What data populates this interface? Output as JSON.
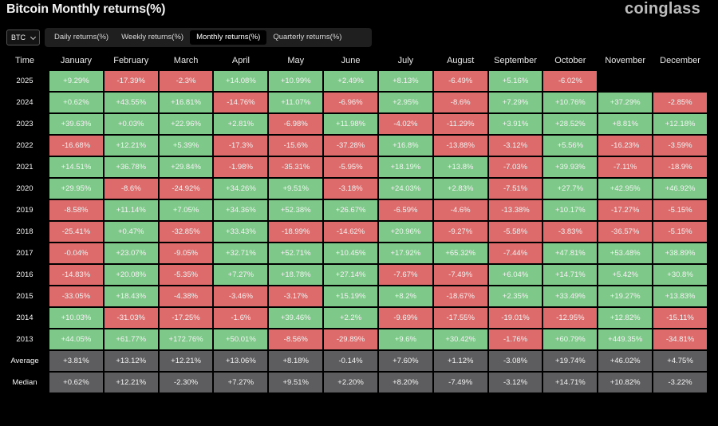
{
  "header": {
    "title": "Bitcoin Monthly returns(%)",
    "brand": "coinglass"
  },
  "asset_select": {
    "value": "BTC"
  },
  "tabs": [
    {
      "label": "Daily returns(%)",
      "active": false
    },
    {
      "label": "Weekly returns(%)",
      "active": false
    },
    {
      "label": "Monthly returns(%)",
      "active": true
    },
    {
      "label": "Quarterly returns(%)",
      "active": false
    }
  ],
  "colors": {
    "positive": "#7ec889",
    "negative": "#dd6b6b",
    "stat": "#5d5d5f"
  },
  "table": {
    "columns": [
      "Time",
      "January",
      "February",
      "March",
      "April",
      "May",
      "June",
      "July",
      "August",
      "September",
      "October",
      "November",
      "December"
    ],
    "rows": [
      {
        "label": "2025",
        "values": [
          "+9.29%",
          "-17.39%",
          "-2.3%",
          "+14.08%",
          "+10.99%",
          "+2.49%",
          "+8.13%",
          "-6.49%",
          "+5.16%",
          "-6.02%",
          "",
          ""
        ]
      },
      {
        "label": "2024",
        "values": [
          "+0.62%",
          "+43.55%",
          "+16.81%",
          "-14.76%",
          "+11.07%",
          "-6.96%",
          "+2.95%",
          "-8.6%",
          "+7.29%",
          "+10.76%",
          "+37.29%",
          "-2.85%"
        ]
      },
      {
        "label": "2023",
        "values": [
          "+39.63%",
          "+0.03%",
          "+22.96%",
          "+2.81%",
          "-6.98%",
          "+11.98%",
          "-4.02%",
          "-11.29%",
          "+3.91%",
          "+28.52%",
          "+8.81%",
          "+12.18%"
        ]
      },
      {
        "label": "2022",
        "values": [
          "-16.68%",
          "+12.21%",
          "+5.39%",
          "-17.3%",
          "-15.6%",
          "-37.28%",
          "+16.8%",
          "-13.88%",
          "-3.12%",
          "+5.56%",
          "-16.23%",
          "-3.59%"
        ]
      },
      {
        "label": "2021",
        "values": [
          "+14.51%",
          "+36.78%",
          "+29.84%",
          "-1.98%",
          "-35.31%",
          "-5.95%",
          "+18.19%",
          "+13.8%",
          "-7.03%",
          "+39.93%",
          "-7.11%",
          "-18.9%"
        ]
      },
      {
        "label": "2020",
        "values": [
          "+29.95%",
          "-8.6%",
          "-24.92%",
          "+34.26%",
          "+9.51%",
          "-3.18%",
          "+24.03%",
          "+2.83%",
          "-7.51%",
          "+27.7%",
          "+42.95%",
          "+46.92%"
        ]
      },
      {
        "label": "2019",
        "values": [
          "-8.58%",
          "+11.14%",
          "+7.05%",
          "+34.36%",
          "+52.38%",
          "+26.67%",
          "-6.59%",
          "-4.6%",
          "-13.38%",
          "+10.17%",
          "-17.27%",
          "-5.15%"
        ]
      },
      {
        "label": "2018",
        "values": [
          "-25.41%",
          "+0.47%",
          "-32.85%",
          "+33.43%",
          "-18.99%",
          "-14.62%",
          "+20.96%",
          "-9.27%",
          "-5.58%",
          "-3.83%",
          "-36.57%",
          "-5.15%"
        ]
      },
      {
        "label": "2017",
        "values": [
          "-0.04%",
          "+23.07%",
          "-9.05%",
          "+32.71%",
          "+52.71%",
          "+10.45%",
          "+17.92%",
          "+65.32%",
          "-7.44%",
          "+47.81%",
          "+53.48%",
          "+38.89%"
        ]
      },
      {
        "label": "2016",
        "values": [
          "-14.83%",
          "+20.08%",
          "-5.35%",
          "+7.27%",
          "+18.78%",
          "+27.14%",
          "-7.67%",
          "-7.49%",
          "+6.04%",
          "+14.71%",
          "+5.42%",
          "+30.8%"
        ]
      },
      {
        "label": "2015",
        "values": [
          "-33.05%",
          "+18.43%",
          "-4.38%",
          "-3.46%",
          "-3.17%",
          "+15.19%",
          "+8.2%",
          "-18.67%",
          "+2.35%",
          "+33.49%",
          "+19.27%",
          "+13.83%"
        ]
      },
      {
        "label": "2014",
        "values": [
          "+10.03%",
          "-31.03%",
          "-17.25%",
          "-1.6%",
          "+39.46%",
          "+2.2%",
          "-9.69%",
          "-17.55%",
          "-19.01%",
          "-12.95%",
          "+12.82%",
          "-15.11%"
        ]
      },
      {
        "label": "2013",
        "values": [
          "+44.05%",
          "+61.77%",
          "+172.76%",
          "+50.01%",
          "-8.56%",
          "-29.89%",
          "+9.6%",
          "+30.42%",
          "-1.76%",
          "+60.79%",
          "+449.35%",
          "-34.81%"
        ]
      }
    ],
    "summary": [
      {
        "label": "Average",
        "values": [
          "+3.81%",
          "+13.12%",
          "+12.21%",
          "+13.06%",
          "+8.18%",
          "-0.14%",
          "+7.60%",
          "+1.12%",
          "-3.08%",
          "+19.74%",
          "+46.02%",
          "+4.75%"
        ]
      },
      {
        "label": "Median",
        "values": [
          "+0.62%",
          "+12.21%",
          "-2.30%",
          "+7.27%",
          "+9.51%",
          "+2.20%",
          "+8.20%",
          "-7.49%",
          "-3.12%",
          "+14.71%",
          "+10.82%",
          "-3.22%"
        ]
      }
    ]
  }
}
